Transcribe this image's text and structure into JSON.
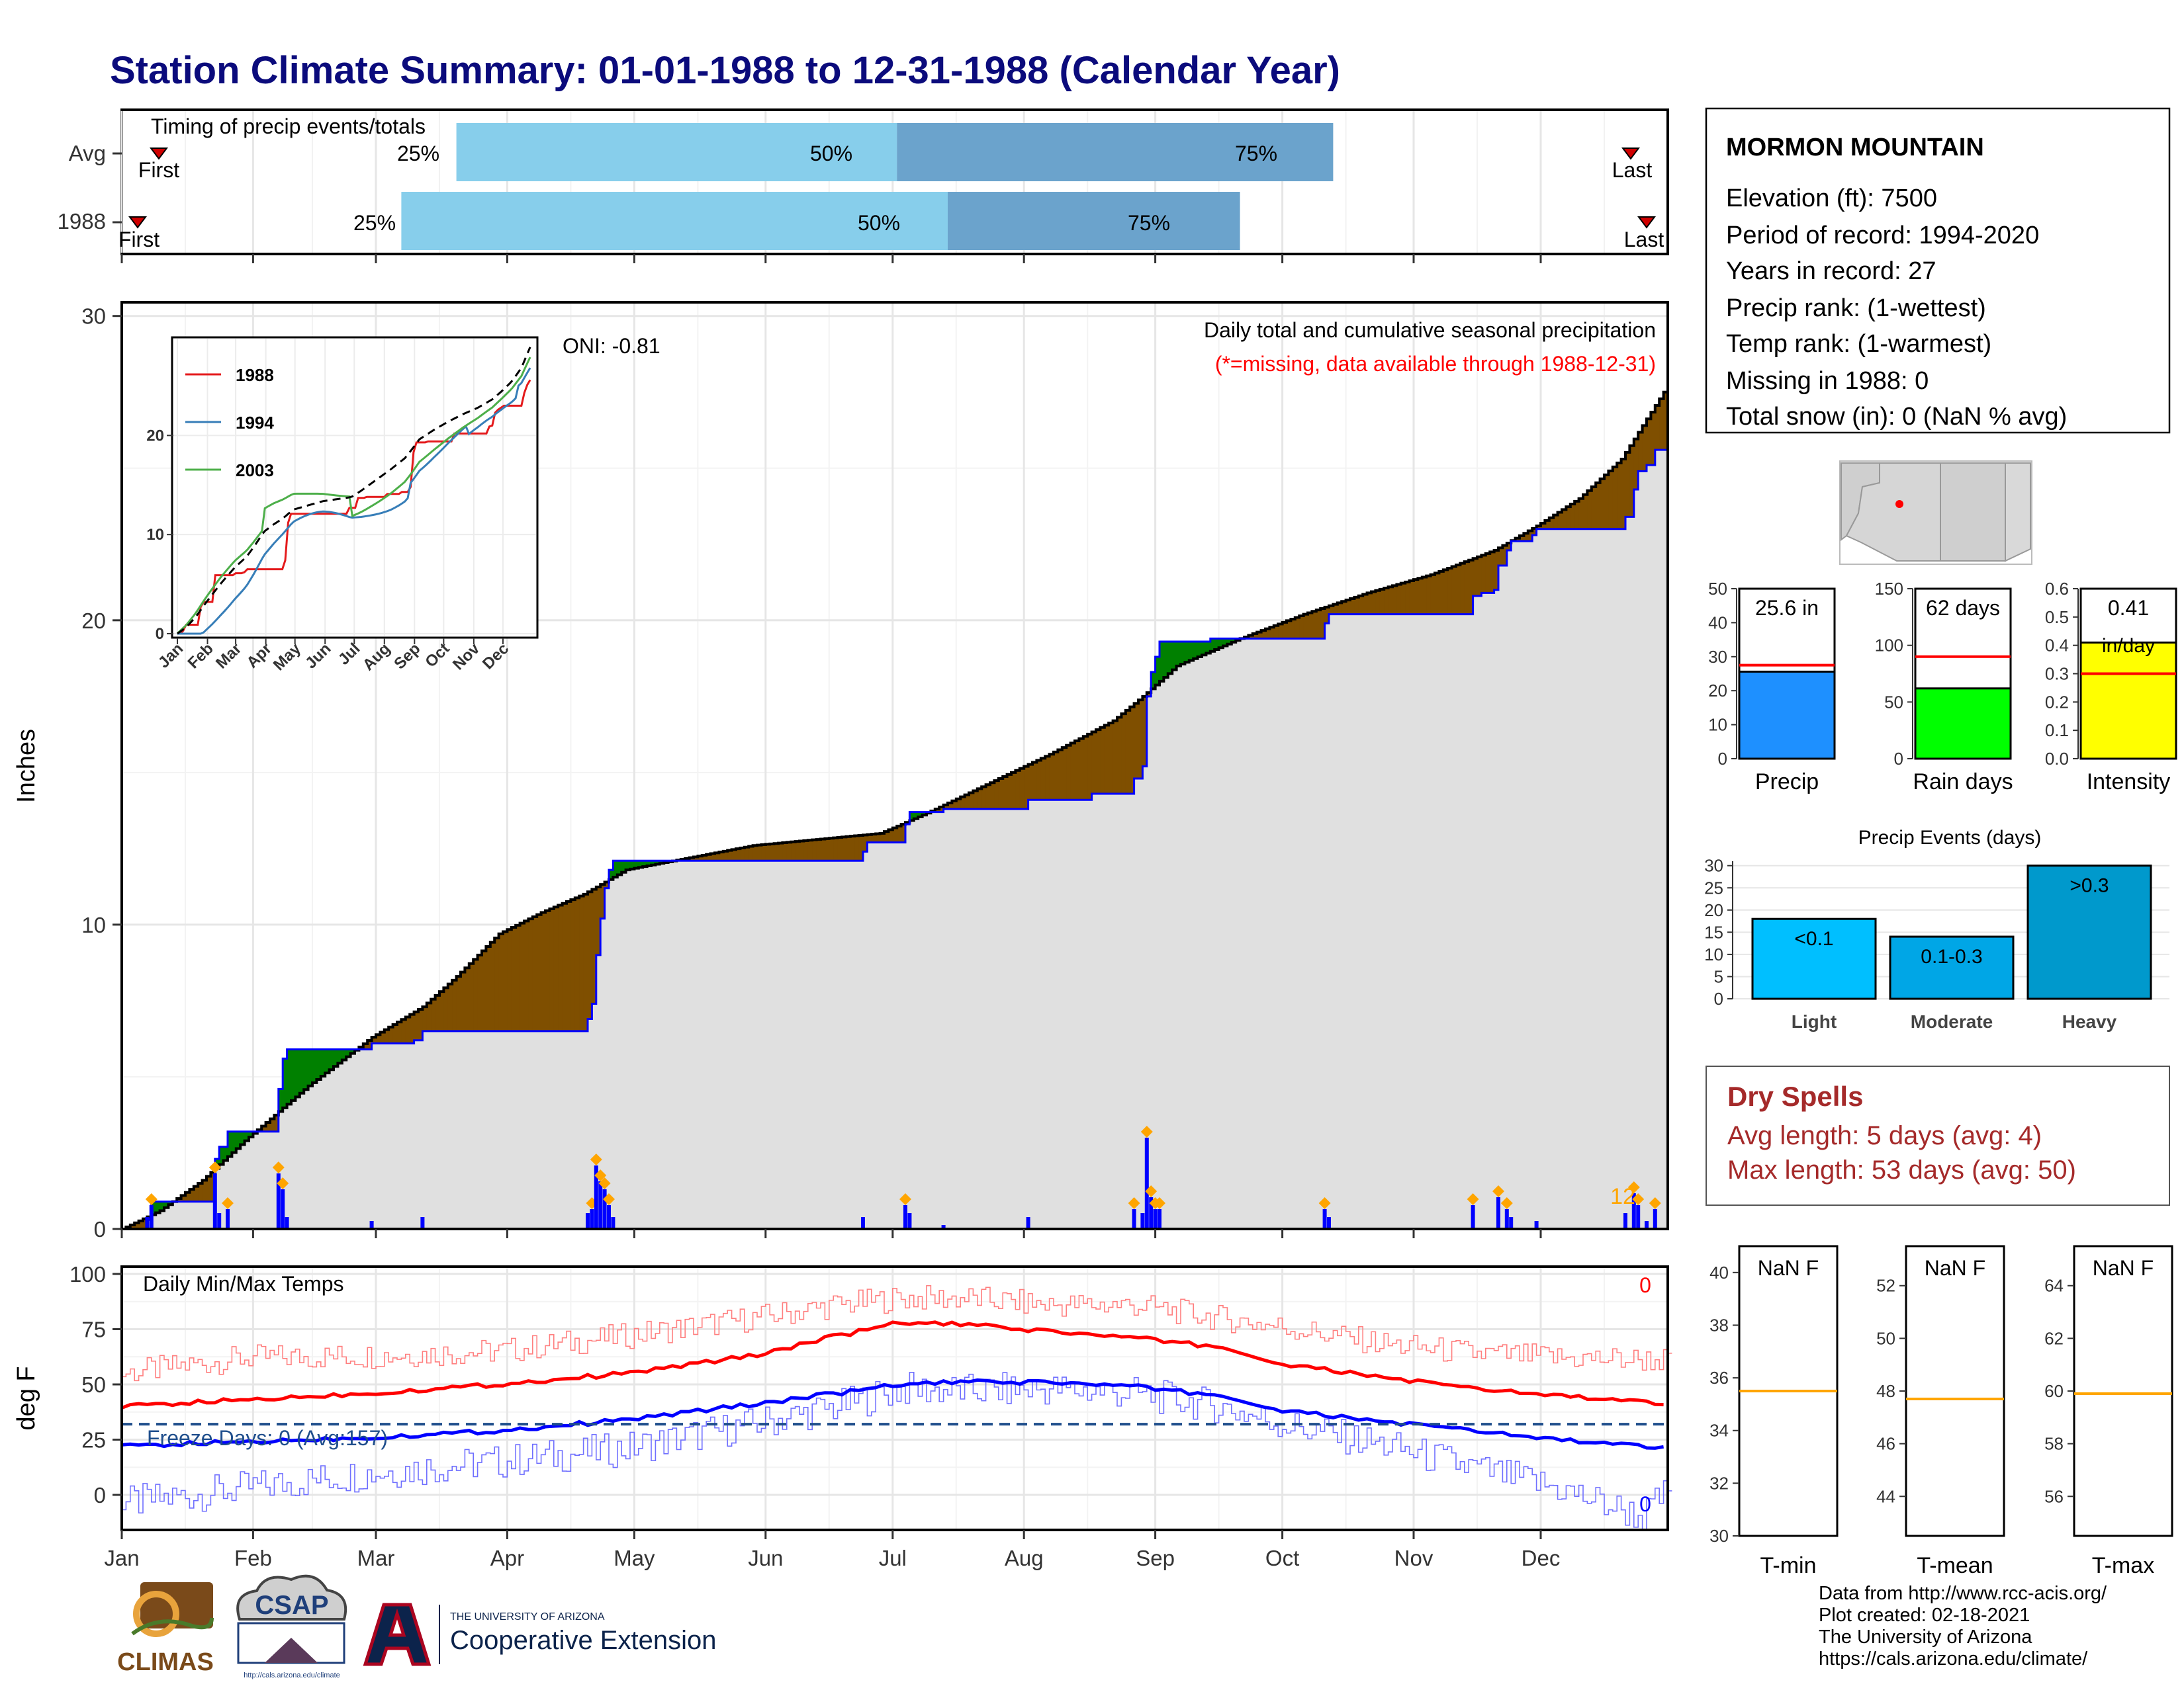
{
  "title": "Station Climate Summary: 01-01-1988 to 12-31-1988 (Calendar Year)",
  "colors": {
    "title": "#0b0b7c",
    "q_light": "#87ceeb",
    "q_dark": "#6ba3cc",
    "above_avg": "#7f4f00",
    "below_avg": "#008000",
    "obs_line": "#0000ff",
    "avg_line": "#000000",
    "fill_base": "#e0e0e0",
    "tmax": "#ff0000",
    "tmin": "#0000ff",
    "missing_text": "#ff0000",
    "dry": "#a52a2a",
    "precip_bar": "#1e90ff",
    "raindays_bar": "#00ff00",
    "intensity_bar": "#ffff00",
    "events_light": "#00bfff",
    "events_mod": "#00a6e6",
    "events_heavy": "#0099cc",
    "marker": "#ffa500",
    "normal_line": "#ff0000",
    "temp_mean_line": "#ffa500"
  },
  "timing": {
    "title": "Timing of precip events/totals",
    "rows": [
      {
        "label": "Avg",
        "first_label": "First",
        "last_label": "Last",
        "first_day": 10,
        "last_day": 360,
        "q25": 80,
        "q50": 184,
        "q75": 287,
        "q25_label": "25%",
        "q50_label": "50%",
        "q75_label": "75%"
      },
      {
        "label": "1988",
        "first_label": "First",
        "last_label": "Last",
        "first_day": 5,
        "last_day": 364,
        "q25": 67,
        "q50": 196,
        "q75": 265,
        "q25_label": "25%",
        "q50_label": "50%",
        "q75_label": "75%"
      }
    ]
  },
  "main_chart": {
    "ylabel": "Inches",
    "y_ticks": [
      "0",
      "10",
      "20",
      "30"
    ],
    "annotation": "Daily total and cumulative seasonal precipitation",
    "missing_note": "(*=missing, data available through 1988-12-31)",
    "oni": "ONI: -0.81",
    "count_label": "12"
  },
  "months": [
    "Jan",
    "Feb",
    "Mar",
    "Apr",
    "May",
    "Jun",
    "Jul",
    "Aug",
    "Sep",
    "Oct",
    "Nov",
    "Dec"
  ],
  "inset": {
    "y_ticks": [
      "0",
      "10",
      "20"
    ],
    "legend": [
      "1988",
      "1994",
      "2003"
    ],
    "legend_colors": [
      "#e41a1c",
      "#377eb8",
      "#4daf4a"
    ]
  },
  "temp_chart": {
    "ylabel": "deg F",
    "y_ticks": [
      "0",
      "25",
      "50",
      "75",
      "100"
    ],
    "title": "Daily Min/Max Temps",
    "freeze_label": "Freeze Days: 0 (Avg:157)",
    "max_count": "0",
    "min_count": "0"
  },
  "station": {
    "name": "MORMON MOUNTAIN",
    "lines": [
      "Elevation (ft): 7500",
      "Period of record: 1994-2020",
      "Years in record: 27",
      "Precip rank:  (1-wettest)",
      "Temp rank:  (1-warmest)",
      "Missing in 1988: 0",
      "Total snow (in): 0 (NaN % avg)"
    ]
  },
  "summary_bars": [
    {
      "label": "Precip",
      "value_label": "25.6 in",
      "value": 25.6,
      "normal": 27.5,
      "ticks": [
        "0",
        "10",
        "20",
        "30",
        "40",
        "50"
      ],
      "max": 50
    },
    {
      "label": "Rain days",
      "value_label": "62 days",
      "value": 62,
      "normal": 90,
      "ticks": [
        "0",
        "50",
        "100",
        "150"
      ],
      "max": 150
    },
    {
      "label": "Intensity",
      "value_label": "0.41",
      "unit_label": "in/day",
      "value": 0.41,
      "normal": 0.3,
      "ticks": [
        "0.0",
        "0.1",
        "0.2",
        "0.3",
        "0.4",
        "0.5",
        "0.6"
      ],
      "max": 0.6
    }
  ],
  "events": {
    "title": "Precip Events (days)",
    "ticks": [
      "0",
      "5",
      "10",
      "15",
      "20",
      "25",
      "30"
    ],
    "bars": [
      {
        "label": "Light",
        "value_label": "<0.1",
        "value": 18
      },
      {
        "label": "Moderate",
        "value_label": "0.1-0.3",
        "value": 14
      },
      {
        "label": "Heavy",
        "value_label": ">0.3",
        "value": 30
      }
    ]
  },
  "dry_spells": {
    "title": "Dry Spells",
    "avg": "Avg length: 5 days (avg: 4)",
    "max": "Max length: 53 days (avg: 50)"
  },
  "temp_bars": [
    {
      "label": "T-min",
      "value_label": "NaN F",
      "ticks": [
        "30",
        "32",
        "34",
        "36",
        "38",
        "40"
      ],
      "min": 30,
      "max": 41,
      "normal": 35.5
    },
    {
      "label": "T-mean",
      "value_label": "NaN F",
      "ticks": [
        "44",
        "46",
        "48",
        "50",
        "52"
      ],
      "min": 42.5,
      "max": 53.5,
      "normal": 47.7
    },
    {
      "label": "T-max",
      "value_label": "NaN F",
      "ticks": [
        "56",
        "58",
        "60",
        "62",
        "64"
      ],
      "min": 54.5,
      "max": 65.5,
      "normal": 59.9
    }
  ],
  "logos": {
    "climas": "CLIMAS",
    "csap": "CSAP",
    "csap_url": "http://cals.arizona.edu/climate",
    "ua_small": "THE UNIVERSITY OF ARIZONA",
    "ua_big": "Cooperative Extension"
  },
  "credits": [
    "Data from http://www.rcc-acis.org/",
    "Plot created: 02-18-2021",
    "The University of Arizona",
    "https://cals.arizona.edu/climate/"
  ],
  "chart_data": [
    {
      "type": "area",
      "title": "Daily total and cumulative seasonal precipitation",
      "ylabel": "Inches",
      "ylim": [
        0,
        30
      ],
      "x_unit": "day of year 1988",
      "observed_cumulative": [
        [
          1,
          0
        ],
        [
          7,
          0.3
        ],
        [
          8,
          0.9
        ],
        [
          22,
          0.9
        ],
        [
          23,
          2.3
        ],
        [
          24,
          2.7
        ],
        [
          26,
          3.2
        ],
        [
          37,
          3.2
        ],
        [
          38,
          4.6
        ],
        [
          39,
          5.6
        ],
        [
          40,
          5.9
        ],
        [
          58,
          5.9
        ],
        [
          60,
          6.1
        ],
        [
          70,
          6.2
        ],
        [
          72,
          6.5
        ],
        [
          75,
          6.5
        ],
        [
          110,
          6.5
        ],
        [
          111,
          6.9
        ],
        [
          112,
          7.4
        ],
        [
          113,
          9.0
        ],
        [
          114,
          10.2
        ],
        [
          115,
          11.2
        ],
        [
          116,
          11.8
        ],
        [
          117,
          12.1
        ],
        [
          175,
          12.1
        ],
        [
          176,
          12.4
        ],
        [
          177,
          12.7
        ],
        [
          178,
          12.7
        ],
        [
          185,
          12.7
        ],
        [
          186,
          13.3
        ],
        [
          187,
          13.7
        ],
        [
          192,
          13.7
        ],
        [
          195,
          13.8
        ],
        [
          210,
          13.8
        ],
        [
          215,
          14.1
        ],
        [
          225,
          14.1
        ],
        [
          230,
          14.3
        ],
        [
          240,
          14.8
        ],
        [
          242,
          15.2
        ],
        [
          243,
          17.5
        ],
        [
          244,
          18.3
        ],
        [
          245,
          18.8
        ],
        [
          246,
          19.3
        ],
        [
          258,
          19.4
        ],
        [
          284,
          19.4
        ],
        [
          285,
          19.9
        ],
        [
          286,
          20.2
        ],
        [
          318,
          20.2
        ],
        [
          320,
          20.8
        ],
        [
          322,
          20.9
        ],
        [
          325,
          21.0
        ],
        [
          326,
          21.8
        ],
        [
          328,
          22.3
        ],
        [
          329,
          22.6
        ],
        [
          334,
          22.8
        ],
        [
          335,
          23.0
        ],
        [
          355,
          23.0
        ],
        [
          356,
          23.4
        ],
        [
          358,
          24.3
        ],
        [
          359,
          24.9
        ],
        [
          361,
          25.1
        ],
        [
          363,
          25.6
        ],
        [
          366,
          25.6
        ]
      ],
      "average_cumulative": [
        [
          1,
          0
        ],
        [
          10,
          0.6
        ],
        [
          20,
          1.6
        ],
        [
          30,
          2.9
        ],
        [
          45,
          4.7
        ],
        [
          60,
          6.3
        ],
        [
          72,
          7.3
        ],
        [
          80,
          8.3
        ],
        [
          90,
          9.7
        ],
        [
          100,
          10.4
        ],
        [
          110,
          11.0
        ],
        [
          120,
          11.8
        ],
        [
          135,
          12.2
        ],
        [
          150,
          12.6
        ],
        [
          165,
          12.8
        ],
        [
          180,
          13.0
        ],
        [
          190,
          13.6
        ],
        [
          205,
          14.6
        ],
        [
          220,
          15.6
        ],
        [
          235,
          16.7
        ],
        [
          242,
          17.5
        ],
        [
          250,
          18.5
        ],
        [
          265,
          19.4
        ],
        [
          280,
          20.2
        ],
        [
          295,
          20.9
        ],
        [
          310,
          21.5
        ],
        [
          325,
          22.3
        ],
        [
          335,
          23.1
        ],
        [
          345,
          24.0
        ],
        [
          355,
          25.3
        ],
        [
          365,
          27.5
        ]
      ],
      "daily_precip": [
        [
          7,
          0.3
        ],
        [
          8,
          0.6
        ],
        [
          23,
          1.4
        ],
        [
          24,
          0.4
        ],
        [
          26,
          0.5
        ],
        [
          38,
          1.4
        ],
        [
          39,
          1.0
        ],
        [
          40,
          0.3
        ],
        [
          60,
          0.2
        ],
        [
          72,
          0.3
        ],
        [
          111,
          0.4
        ],
        [
          112,
          0.5
        ],
        [
          113,
          1.6
        ],
        [
          114,
          1.2
        ],
        [
          115,
          1.0
        ],
        [
          116,
          0.6
        ],
        [
          117,
          0.3
        ],
        [
          176,
          0.3
        ],
        [
          186,
          0.6
        ],
        [
          187,
          0.4
        ],
        [
          195,
          0.1
        ],
        [
          215,
          0.3
        ],
        [
          240,
          0.5
        ],
        [
          242,
          0.4
        ],
        [
          243,
          2.3
        ],
        [
          244,
          0.8
        ],
        [
          245,
          0.5
        ],
        [
          246,
          0.5
        ],
        [
          285,
          0.5
        ],
        [
          286,
          0.3
        ],
        [
          320,
          0.6
        ],
        [
          326,
          0.8
        ],
        [
          328,
          0.5
        ],
        [
          329,
          0.3
        ],
        [
          335,
          0.2
        ],
        [
          356,
          0.4
        ],
        [
          358,
          0.9
        ],
        [
          359,
          0.6
        ],
        [
          361,
          0.2
        ],
        [
          363,
          0.5
        ]
      ]
    },
    {
      "type": "line",
      "title": "Daily Min/Max Temps",
      "ylabel": "deg F",
      "ylim": [
        -15,
        100
      ],
      "x_unit": "day of year 1988",
      "tmax_normal": [
        [
          1,
          40
        ],
        [
          30,
          43
        ],
        [
          60,
          46
        ],
        [
          90,
          50
        ],
        [
          120,
          55
        ],
        [
          150,
          63
        ],
        [
          170,
          72
        ],
        [
          185,
          78
        ],
        [
          200,
          77
        ],
        [
          220,
          74
        ],
        [
          240,
          71
        ],
        [
          260,
          67
        ],
        [
          275,
          59
        ],
        [
          300,
          53
        ],
        [
          320,
          48
        ],
        [
          340,
          45
        ],
        [
          365,
          41
        ]
      ],
      "tmin_normal": [
        [
          1,
          22
        ],
        [
          30,
          24
        ],
        [
          60,
          26
        ],
        [
          90,
          29
        ],
        [
          120,
          34
        ],
        [
          150,
          41
        ],
        [
          170,
          46
        ],
        [
          185,
          50
        ],
        [
          200,
          51
        ],
        [
          220,
          51
        ],
        [
          240,
          49
        ],
        [
          260,
          45
        ],
        [
          275,
          38
        ],
        [
          300,
          33
        ],
        [
          320,
          29
        ],
        [
          340,
          25
        ],
        [
          365,
          21
        ]
      ],
      "tmax_observed": [
        [
          1,
          55
        ],
        [
          30,
          62
        ],
        [
          60,
          63
        ],
        [
          90,
          65
        ],
        [
          120,
          72
        ],
        [
          150,
          80
        ],
        [
          170,
          86
        ],
        [
          185,
          89
        ],
        [
          200,
          89
        ],
        [
          220,
          86
        ],
        [
          240,
          86
        ],
        [
          260,
          80
        ],
        [
          275,
          76
        ],
        [
          300,
          68
        ],
        [
          320,
          64
        ],
        [
          340,
          62
        ],
        [
          365,
          61
        ]
      ],
      "tmin_observed": [
        [
          1,
          -4
        ],
        [
          30,
          3
        ],
        [
          60,
          10
        ],
        [
          90,
          15
        ],
        [
          120,
          21
        ],
        [
          150,
          32
        ],
        [
          170,
          40
        ],
        [
          185,
          48
        ],
        [
          200,
          47
        ],
        [
          220,
          48
        ],
        [
          240,
          46
        ],
        [
          260,
          40
        ],
        [
          275,
          32
        ],
        [
          300,
          22
        ],
        [
          320,
          12
        ],
        [
          340,
          3
        ],
        [
          360,
          -10
        ],
        [
          365,
          0
        ]
      ],
      "freeze_line": 32
    }
  ]
}
